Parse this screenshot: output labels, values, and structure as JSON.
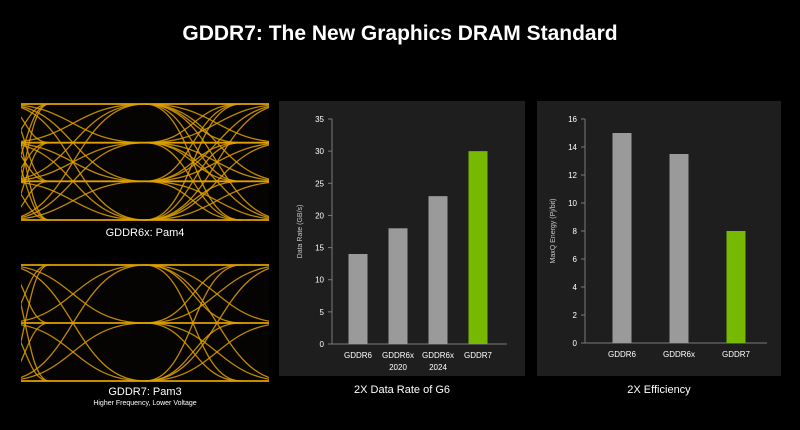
{
  "title": "GDDR7: The New Graphics DRAM Standard",
  "eyes": [
    {
      "label": "GDDR6x: Pam4",
      "sublabel": "",
      "levels": 4
    },
    {
      "label": "GDDR7: Pam3",
      "sublabel": "Higher Frequency, Lower Voltage",
      "levels": 3
    }
  ],
  "colors": {
    "background": "#000000",
    "panel": "#1e1e1e",
    "bar_gray": "#9a9a9a",
    "bar_green": "#76b900",
    "eye_trace": "#e0a000",
    "axis": "#7a7a7a",
    "text": "#ffffff"
  },
  "chart_data": [
    {
      "type": "bar",
      "caption": "2X Data Rate of G6",
      "ylabel": "Data Rate (GB/s)",
      "xlabel": "",
      "categories": [
        [
          "GDDR6"
        ],
        [
          "GDDR6x",
          "2020"
        ],
        [
          "GDDR6x",
          "2024"
        ],
        [
          "GDDR7"
        ]
      ],
      "values": [
        14,
        18,
        23,
        30
      ],
      "highlight": [
        false,
        false,
        false,
        true
      ],
      "ylim": [
        0,
        35
      ],
      "yticks": [
        0,
        5,
        10,
        15,
        20,
        25,
        30,
        35
      ],
      "grid": false,
      "legend": "none"
    },
    {
      "type": "bar",
      "caption": "2X Efficiency",
      "ylabel": "MaxQ Energy (Pj/bit)",
      "xlabel": "",
      "categories": [
        [
          "GDDR6"
        ],
        [
          "GDDR6x"
        ],
        [
          "GDDR7"
        ]
      ],
      "values": [
        15,
        13.5,
        8
      ],
      "highlight": [
        false,
        false,
        true
      ],
      "ylim": [
        0,
        16
      ],
      "yticks": [
        0,
        2,
        4,
        6,
        8,
        10,
        12,
        14,
        16
      ],
      "grid": false,
      "legend": "none"
    }
  ]
}
